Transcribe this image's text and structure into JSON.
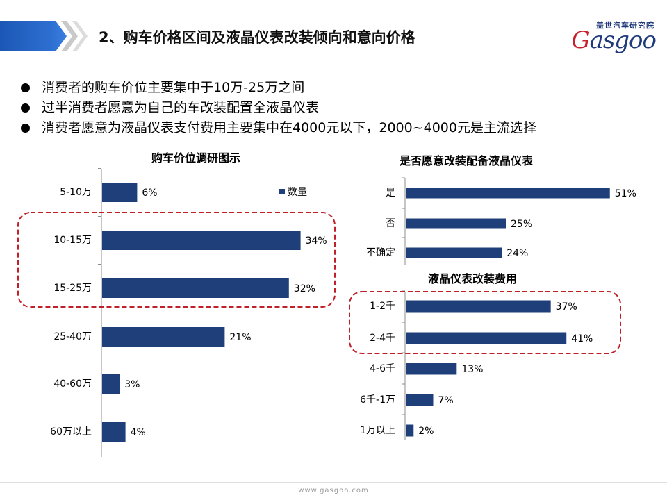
{
  "header": {
    "title": "2、购车价格区间及液晶仪表改装倾向和意向价格",
    "logo_cn": "盖世汽车研究院",
    "logo_en_first": "G",
    "logo_en_rest": "asgoo"
  },
  "bullets": [
    "消费者的购车价位主要集中于10万-25万之间",
    "过半消费者愿意为自己的车改装配置全液晶仪表",
    "消费者愿意为液晶仪表支付费用主要集中在4000元以下，2000~4000元是主流选择"
  ],
  "colors": {
    "bar": "#1f3f7a",
    "highlight": "#c0202a",
    "axis": "#8c8c8c"
  },
  "footer": {
    "url": "www.gasgoo.com"
  },
  "chart_data": [
    {
      "type": "bar",
      "orientation": "horizontal",
      "title": "购车价位调研图示",
      "categories": [
        "5-10万",
        "10-15万",
        "15-25万",
        "25-40万",
        "40-60万",
        "60万以上"
      ],
      "series": [
        {
          "name": "数量",
          "values": [
            6,
            34,
            32,
            21,
            3,
            4
          ]
        }
      ],
      "value_labels": [
        "6%",
        "34%",
        "32%",
        "21%",
        "3%",
        "4%"
      ],
      "unit": "%",
      "legend": "top-right",
      "grid": false,
      "highlight": [
        "10-15万",
        "15-25万"
      ]
    },
    {
      "type": "bar",
      "orientation": "horizontal",
      "title": "是否愿意改装配备液晶仪表",
      "categories": [
        "是",
        "否",
        "不确定"
      ],
      "values": [
        51,
        25,
        24
      ],
      "value_labels": [
        "51%",
        "25%",
        "24%"
      ],
      "unit": "%",
      "grid": false
    },
    {
      "type": "bar",
      "orientation": "horizontal",
      "title": "液晶仪表改装费用",
      "categories": [
        "1-2千",
        "2-4千",
        "4-6千",
        "6千-1万",
        "1万以上"
      ],
      "values": [
        37,
        41,
        13,
        7,
        2
      ],
      "value_labels": [
        "37%",
        "41%",
        "13%",
        "7%",
        "2%"
      ],
      "unit": "%",
      "grid": false,
      "highlight": [
        "1-2千",
        "2-4千"
      ]
    }
  ]
}
